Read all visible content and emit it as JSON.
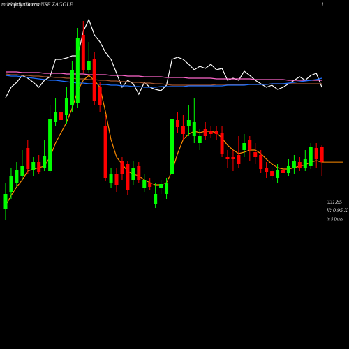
{
  "chart_data": {
    "type": "candlestick",
    "site": "munafaSutra.com",
    "title": "Weekly Charts NSE ZAGGLE",
    "corner_label": "1",
    "price_label": "331.85",
    "volume_label": "V: 0.95 X",
    "period_label": "in 5 Days",
    "ylim": [
      64,
      564
    ],
    "up_color": "#00ff00",
    "down_color": "#ff0000",
    "open": [
      264,
      289,
      302,
      312,
      352,
      320,
      332,
      324,
      319,
      389,
      404,
      399,
      414,
      416,
      514,
      464,
      479,
      439,
      384,
      302,
      314,
      334,
      329,
      306,
      326,
      294,
      302,
      272,
      294,
      286,
      314,
      392,
      384,
      384,
      369,
      359,
      379,
      376,
      376,
      374,
      339,
      339,
      342,
      349,
      364,
      346,
      342,
      324,
      319,
      309,
      321,
      316,
      324,
      332,
      324,
      326,
      352,
      354
    ],
    "high": [
      302,
      324,
      332,
      349,
      364,
      339,
      342,
      364,
      414,
      424,
      414,
      439,
      476,
      524,
      534,
      504,
      489,
      446,
      399,
      324,
      324,
      339,
      334,
      334,
      332,
      314,
      309,
      302,
      306,
      309,
      404,
      404,
      399,
      414,
      424,
      379,
      389,
      384,
      384,
      384,
      349,
      349,
      369,
      372,
      369,
      359,
      349,
      332,
      324,
      329,
      329,
      336,
      342,
      339,
      349,
      359,
      359,
      356
    ],
    "low": [
      249,
      279,
      296,
      306,
      314,
      312,
      314,
      319,
      316,
      384,
      384,
      386,
      404,
      409,
      459,
      459,
      414,
      404,
      304,
      294,
      289,
      306,
      284,
      299,
      302,
      289,
      292,
      266,
      286,
      279,
      309,
      374,
      364,
      369,
      359,
      349,
      364,
      367,
      364,
      339,
      324,
      319,
      324,
      339,
      334,
      329,
      316,
      309,
      306,
      302,
      306,
      312,
      314,
      319,
      319,
      322,
      324,
      312
    ],
    "close": [
      286,
      312,
      321,
      326,
      322,
      332,
      318,
      340,
      394,
      404,
      392,
      424,
      464,
      509,
      464,
      476,
      419,
      414,
      309,
      314,
      299,
      314,
      292,
      324,
      306,
      306,
      296,
      286,
      301,
      302,
      394,
      382,
      372,
      392,
      389,
      369,
      369,
      372,
      372,
      344,
      336,
      336,
      329,
      359,
      349,
      339,
      322,
      318,
      312,
      321,
      316,
      326,
      334,
      324,
      336,
      354,
      336,
      331.85
    ],
    "overlays": [
      {
        "color": "#ffffff",
        "values": [
          424,
          439,
          446,
          456,
          452,
          446,
          439,
          449,
          454,
          479,
          479,
          481,
          484,
          484,
          519,
          536,
          514,
          504,
          489,
          479,
          459,
          439,
          449,
          444,
          429,
          446,
          439,
          436,
          434,
          442,
          479,
          482,
          479,
          472,
          464,
          469,
          466,
          472,
          464,
          466,
          449,
          452,
          449,
          462,
          456,
          449,
          444,
          439,
          442,
          436,
          439,
          444,
          449,
          454,
          449,
          456,
          459,
          439
        ]
      },
      {
        "color": "#a0522d",
        "values": [
          458,
          457,
          457,
          456,
          456,
          455,
          455,
          454,
          454,
          453,
          453,
          452,
          452,
          451,
          451,
          450,
          450,
          449,
          449,
          448,
          448,
          447,
          447,
          446,
          446,
          445,
          445,
          444,
          444,
          443,
          442,
          442,
          442,
          442,
          442,
          442,
          442,
          442,
          443,
          443,
          443,
          443,
          443,
          443,
          443,
          443,
          443,
          443,
          444,
          444,
          444,
          444,
          444,
          444,
          444,
          444,
          444,
          444
        ]
      },
      {
        "color": "#ff66cc",
        "values": [
          461,
          461,
          461,
          460,
          460,
          460,
          460,
          459,
          459,
          459,
          459,
          458,
          458,
          458,
          458,
          457,
          457,
          457,
          457,
          456,
          456,
          456,
          455,
          455,
          455,
          454,
          454,
          454,
          454,
          453,
          453,
          453,
          453,
          452,
          452,
          452,
          452,
          452,
          451,
          451,
          451,
          451,
          451,
          451,
          451,
          450,
          450,
          450,
          450,
          450,
          450,
          449,
          449,
          449,
          449,
          449,
          449,
          449
        ]
      },
      {
        "color": "#1e6fff",
        "values": [
          456,
          455,
          455,
          454,
          453,
          452,
          451,
          450,
          449,
          449,
          448,
          447,
          446,
          445,
          445,
          444,
          444,
          443,
          443,
          442,
          442,
          441,
          441,
          440,
          440,
          439,
          439,
          439,
          440,
          440,
          440,
          440,
          440,
          441,
          441,
          441,
          441,
          441,
          441,
          441,
          442,
          442,
          442,
          442,
          443,
          443,
          443,
          443,
          444,
          444,
          444,
          445,
          446,
          447,
          448,
          449,
          450,
          452
        ]
      },
      {
        "color": "#ff8c00",
        "values": [
          269,
          284,
          296,
          306,
          319,
          322,
          324,
          326,
          339,
          359,
          374,
          389,
          409,
          434,
          449,
          456,
          449,
          439,
          404,
          364,
          339,
          329,
          319,
          314,
          312,
          306,
          302,
          299,
          299,
          302,
          319,
          344,
          364,
          372,
          376,
          374,
          376,
          376,
          374,
          366,
          356,
          349,
          344,
          346,
          349,
          349,
          344,
          336,
          329,
          324,
          322,
          322,
          324,
          326,
          328,
          332,
          334,
          332
        ]
      }
    ]
  }
}
